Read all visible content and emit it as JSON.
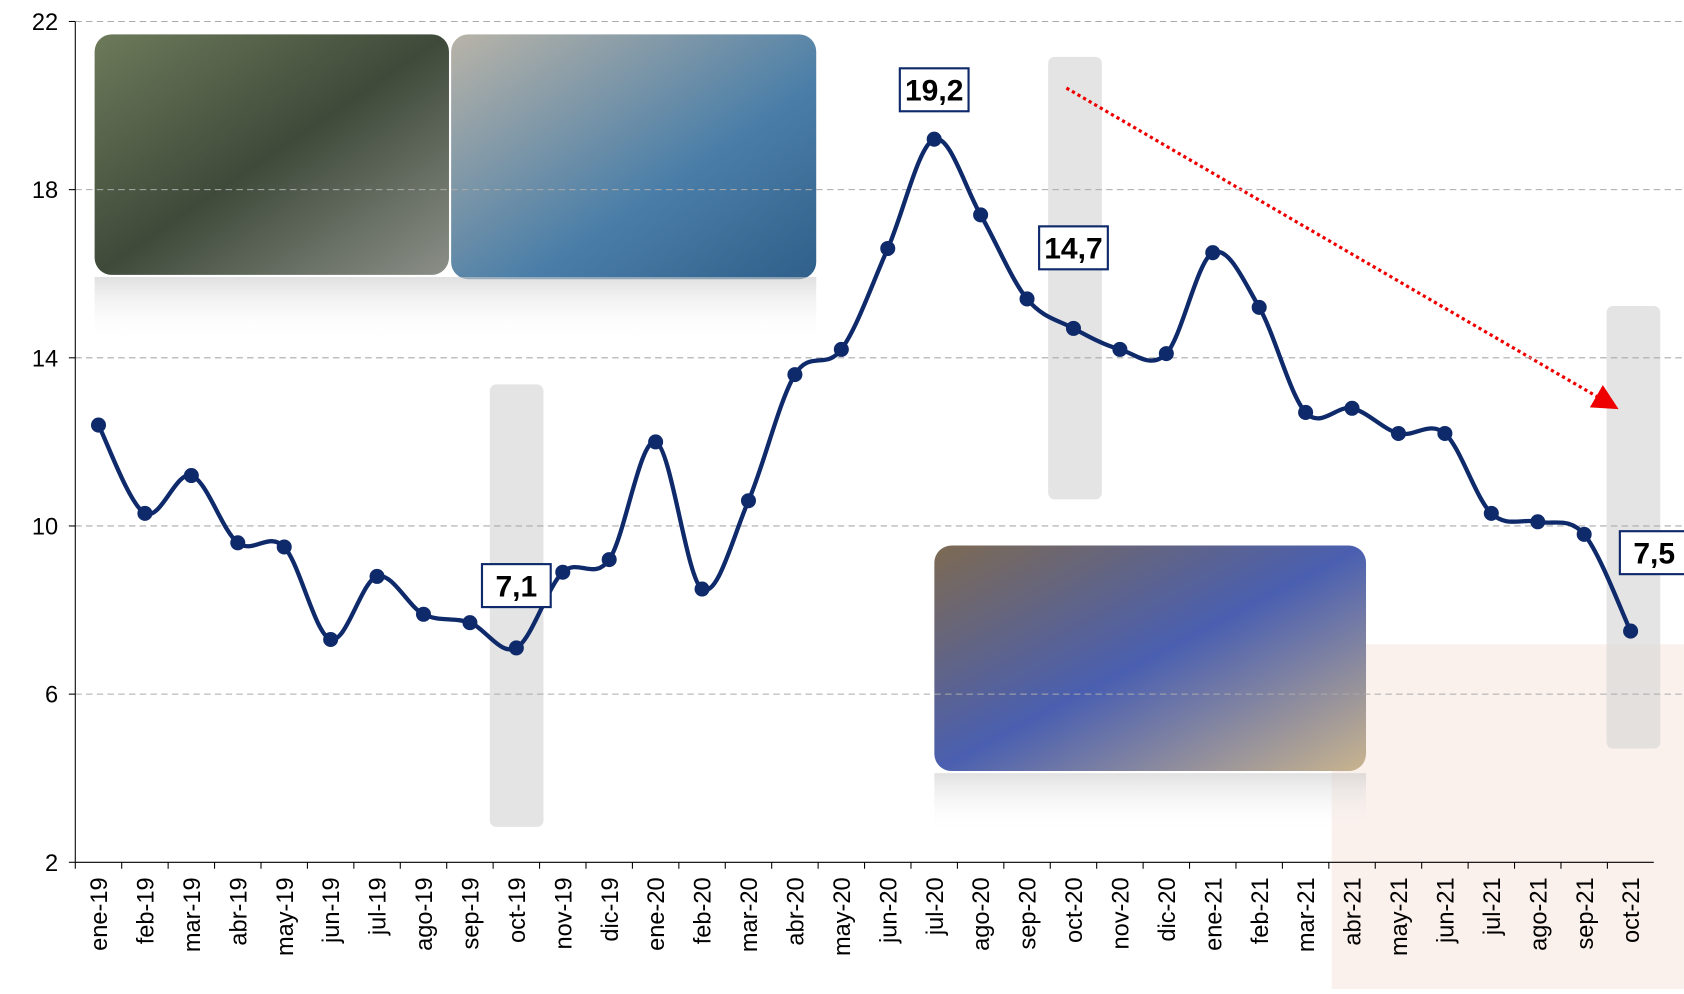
{
  "chart_data": {
    "type": "line",
    "categories": [
      "ene-19",
      "feb-19",
      "mar-19",
      "abr-19",
      "may-19",
      "jun-19",
      "jul-19",
      "ago-19",
      "sep-19",
      "oct-19",
      "nov-19",
      "dic-19",
      "ene-20",
      "feb-20",
      "mar-20",
      "abr-20",
      "may-20",
      "jun-20",
      "jul-20",
      "ago-20",
      "sep-20",
      "oct-20",
      "nov-20",
      "dic-20",
      "ene-21",
      "feb-21",
      "mar-21",
      "abr-21",
      "may-21",
      "jun-21",
      "jul-21",
      "ago-21",
      "sep-21",
      "oct-21"
    ],
    "series": [
      {
        "color": "#0f2a6b",
        "values": [
          12.4,
          10.3,
          11.2,
          9.6,
          9.5,
          7.3,
          8.8,
          7.9,
          7.7,
          7.1,
          8.9,
          9.2,
          12.0,
          8.5,
          10.6,
          13.6,
          14.2,
          16.6,
          19.2,
          17.4,
          15.4,
          14.7,
          14.2,
          14.1,
          16.5,
          15.2,
          12.7,
          12.8,
          12.2,
          12.2,
          10.3,
          10.1,
          9.8,
          7.5
        ],
        "value_labels": [
          null,
          null,
          null,
          null,
          null,
          null,
          null,
          null,
          null,
          "7,1",
          null,
          null,
          null,
          null,
          null,
          null,
          null,
          null,
          "19,2",
          null,
          null,
          "14,7",
          null,
          null,
          null,
          null,
          null,
          null,
          null,
          null,
          null,
          null,
          null,
          "7,5"
        ]
      }
    ],
    "ylim": [
      2,
      22
    ],
    "yticks": [
      2,
      6,
      10,
      14,
      18,
      22
    ],
    "grid": true
  }
}
